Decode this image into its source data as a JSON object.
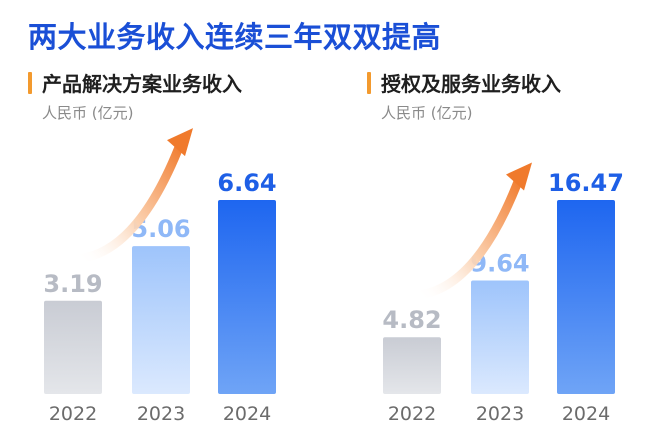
{
  "headline": "两大业务收入连续三年双双提高",
  "colors": {
    "headline": "#1a4fd6",
    "accent_bar": "#f39a2e",
    "bar_2022": "#c9ccd4",
    "bar_2023": "#9ec4fb",
    "bar_2024": "#1e66f0",
    "value_2022": "#b7bbc4",
    "value_2023": "#8fb8f7",
    "value_2024": "#1e5fe6",
    "arrow": "#f07a2c"
  },
  "chart_data": [
    {
      "type": "bar",
      "title": "产品解决方案业务收入",
      "unit": "人民币 (亿元)",
      "categories": [
        "2022",
        "2023",
        "2024"
      ],
      "values": [
        3.19,
        5.06,
        6.64
      ],
      "value_labels": [
        "3.19",
        "5.06",
        "6.64"
      ],
      "trend_arrow": true
    },
    {
      "type": "bar",
      "title": "授权及服务业务收入",
      "unit": "人民币 (亿元)",
      "categories": [
        "2022",
        "2023",
        "2024"
      ],
      "values": [
        4.82,
        9.64,
        16.47
      ],
      "value_labels": [
        "4.82",
        "9.64",
        "16.47"
      ],
      "trend_arrow": true
    }
  ]
}
